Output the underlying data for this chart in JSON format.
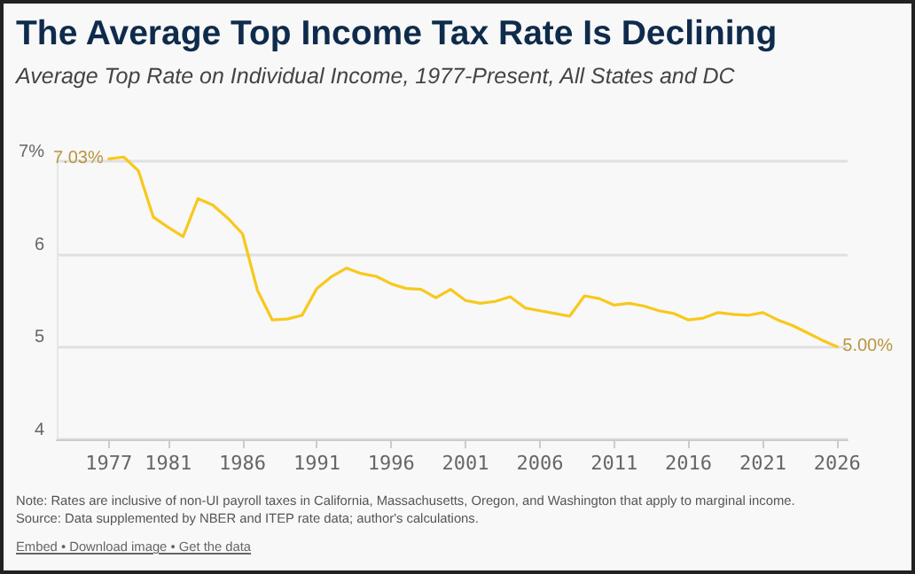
{
  "chart_data": {
    "type": "line",
    "title": "The Average Top Income Tax Rate Is Declining",
    "subtitle": "Average Top Rate on Individual Income, 1977-Present, All States and DC",
    "x": [
      1977,
      1978,
      1979,
      1980,
      1981,
      1982,
      1983,
      1984,
      1985,
      1986,
      1987,
      1988,
      1989,
      1990,
      1991,
      1992,
      1993,
      1994,
      1995,
      1996,
      1997,
      1998,
      1999,
      2000,
      2001,
      2002,
      2003,
      2004,
      2005,
      2006,
      2007,
      2008,
      2009,
      2010,
      2011,
      2012,
      2013,
      2014,
      2015,
      2016,
      2017,
      2018,
      2019,
      2020,
      2021,
      2022,
      2023,
      2024,
      2025,
      2026
    ],
    "series": [
      {
        "color": "#f8c81c",
        "values": [
          7.03,
          7.05,
          6.9,
          6.4,
          6.29,
          6.19,
          6.6,
          6.53,
          6.39,
          6.22,
          5.61,
          5.29,
          5.3,
          5.34,
          5.63,
          5.76,
          5.85,
          5.79,
          5.76,
          5.68,
          5.63,
          5.62,
          5.53,
          5.62,
          5.5,
          5.47,
          5.49,
          5.54,
          5.42,
          5.39,
          5.36,
          5.33,
          5.55,
          5.52,
          5.45,
          5.47,
          5.44,
          5.39,
          5.36,
          5.29,
          5.31,
          5.37,
          5.35,
          5.34,
          5.37,
          5.29,
          5.23,
          5.15,
          5.07,
          5.0
        ],
        "value_labels": [
          "7.03%",
          null,
          null,
          null,
          null,
          null,
          null,
          null,
          null,
          null,
          null,
          null,
          null,
          null,
          null,
          null,
          null,
          null,
          null,
          null,
          null,
          null,
          null,
          null,
          null,
          null,
          null,
          null,
          null,
          null,
          null,
          null,
          null,
          null,
          null,
          null,
          null,
          null,
          null,
          null,
          null,
          null,
          null,
          null,
          null,
          null,
          null,
          null,
          null,
          "5.00%"
        ]
      }
    ],
    "xlim": [
      1973.5,
      2026.7
    ],
    "xticks": [
      1977,
      1981,
      1986,
      1991,
      1996,
      2001,
      2006,
      2011,
      2016,
      2021,
      2026
    ],
    "ylim": [
      4,
      7.1
    ],
    "yticks": [
      4,
      5,
      6,
      {
        "value": 7,
        "label": "7%"
      }
    ],
    "grid": "y",
    "marker": "none",
    "line_style": "solid",
    "annotations": [
      "Note: Rates are inclusive of non-UI payroll taxes in California, Massachusetts, Oregon, and Washington that apply to marginal income.",
      "Source: Data supplemented by NBER and ITEP rate data; author's calculations.",
      "Embed • Download image • Get the data"
    ]
  }
}
